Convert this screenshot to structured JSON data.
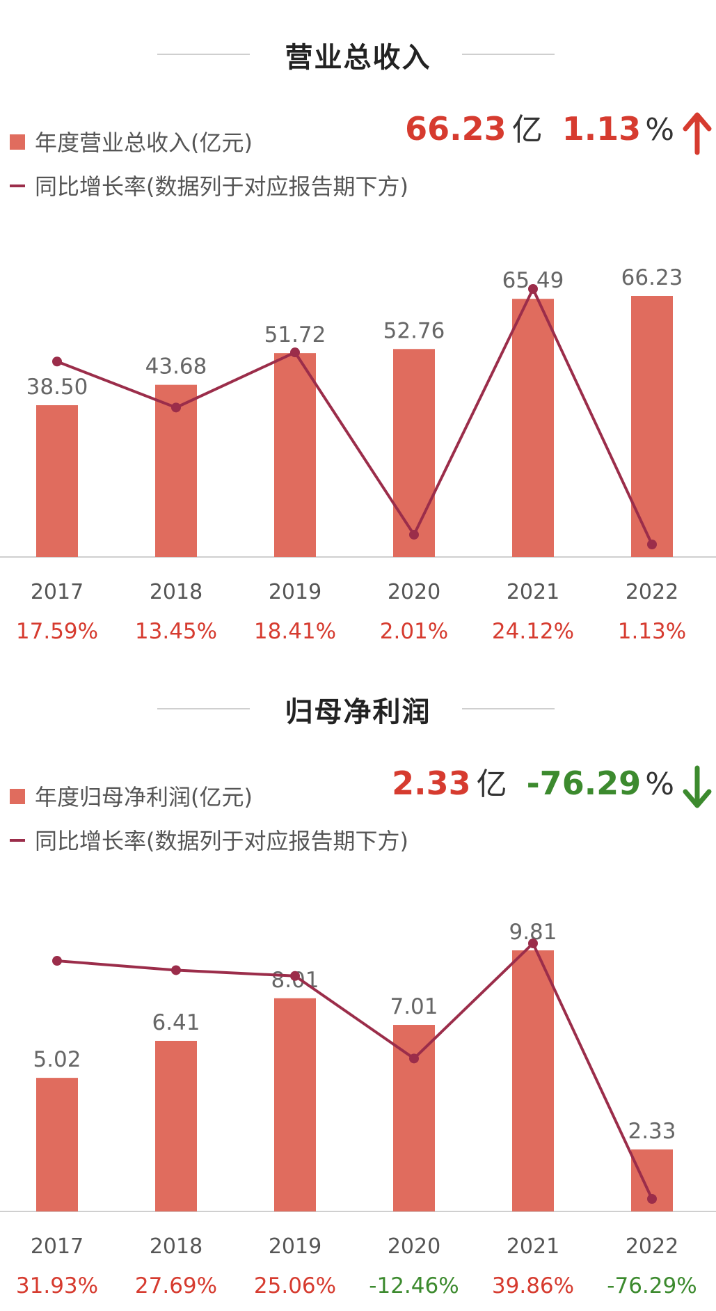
{
  "colors": {
    "bar": "#e06c5e",
    "line": "#9b2d4a",
    "positive": "#d63b2f",
    "negative": "#3c8a2e",
    "axis": "#cfcfcf"
  },
  "revenue": {
    "title": "营业总收入",
    "legend_bar": "年度营业总收入(亿元)",
    "legend_line": "同比增长率(数据列于对应报告期下方)",
    "summary_value": "66.23",
    "summary_unit": "亿",
    "summary_pct": "1.13",
    "summary_pct_unit": "%",
    "trend_icon": "up-arrow-icon"
  },
  "profit": {
    "title": "归母净利润",
    "legend_bar": "年度归母净利润(亿元)",
    "legend_line": "同比增长率(数据列于对应报告期下方)",
    "summary_value": "2.33",
    "summary_unit": "亿",
    "summary_pct": "-76.29",
    "summary_pct_unit": "%",
    "trend_icon": "down-arrow-icon"
  },
  "chart_data": [
    {
      "type": "bar",
      "title": "营业总收入",
      "categories": [
        "2017",
        "2018",
        "2019",
        "2020",
        "2021",
        "2022"
      ],
      "series": [
        {
          "name": "年度营业总收入(亿元)",
          "type": "bar",
          "values": [
            38.5,
            43.68,
            51.72,
            52.76,
            65.49,
            66.23
          ],
          "labels": [
            "38.50",
            "43.68",
            "51.72",
            "52.76",
            "65.49",
            "66.23"
          ]
        },
        {
          "name": "同比增长率(数据列于对应报告期下方)",
          "type": "line",
          "values": [
            17.59,
            13.45,
            18.41,
            2.01,
            24.12,
            1.13
          ],
          "labels": [
            "17.59%",
            "13.45%",
            "18.41%",
            "2.01%",
            "24.12%",
            "1.13%"
          ]
        }
      ],
      "bar_ylim": [
        0,
        66.23
      ],
      "line_ylim": [
        1.13,
        24.12
      ],
      "legend": "top-left"
    },
    {
      "type": "bar",
      "title": "归母净利润",
      "categories": [
        "2017",
        "2018",
        "2019",
        "2020",
        "2021",
        "2022"
      ],
      "series": [
        {
          "name": "年度归母净利润(亿元)",
          "type": "bar",
          "values": [
            5.02,
            6.41,
            8.01,
            7.01,
            9.81,
            2.33
          ],
          "labels": [
            "5.02",
            "6.41",
            "8.01",
            "7.01",
            "9.81",
            "2.33"
          ]
        },
        {
          "name": "同比增长率(数据列于对应报告期下方)",
          "type": "line",
          "values": [
            31.93,
            27.69,
            25.06,
            -12.46,
            39.86,
            -76.29
          ],
          "labels": [
            "31.93%",
            "27.69%",
            "25.06%",
            "-12.46%",
            "39.86%",
            "-76.29%"
          ]
        }
      ],
      "bar_ylim": [
        0,
        9.81
      ],
      "line_ylim": [
        -76.29,
        39.86
      ],
      "legend": "top-left"
    }
  ]
}
